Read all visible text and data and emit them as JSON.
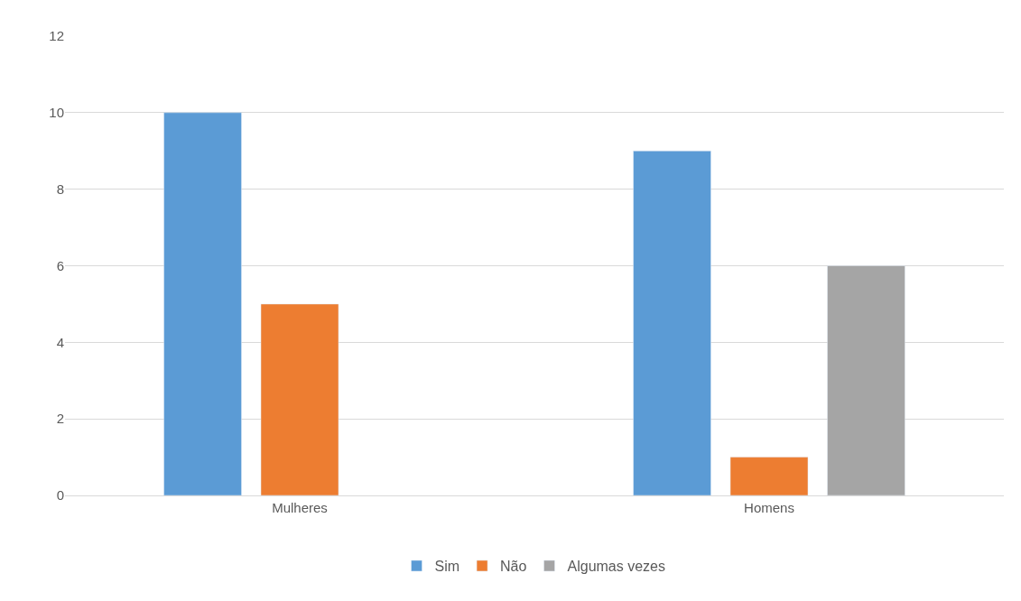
{
  "chart_data": {
    "type": "bar",
    "categories": [
      "Mulheres",
      "Homens"
    ],
    "series": [
      {
        "name": "Sim",
        "color": "#5b9bd5",
        "values": [
          10,
          9
        ]
      },
      {
        "name": "Não",
        "color": "#ed7d31",
        "values": [
          5,
          1
        ]
      },
      {
        "name": "Algumas vezes",
        "color": "#a5a5a5",
        "values": [
          null,
          6
        ]
      }
    ],
    "ylim": [
      0,
      12
    ],
    "yticks": [
      0,
      2,
      4,
      6,
      8,
      10,
      12
    ],
    "grid": "y",
    "legend": "bottom"
  }
}
